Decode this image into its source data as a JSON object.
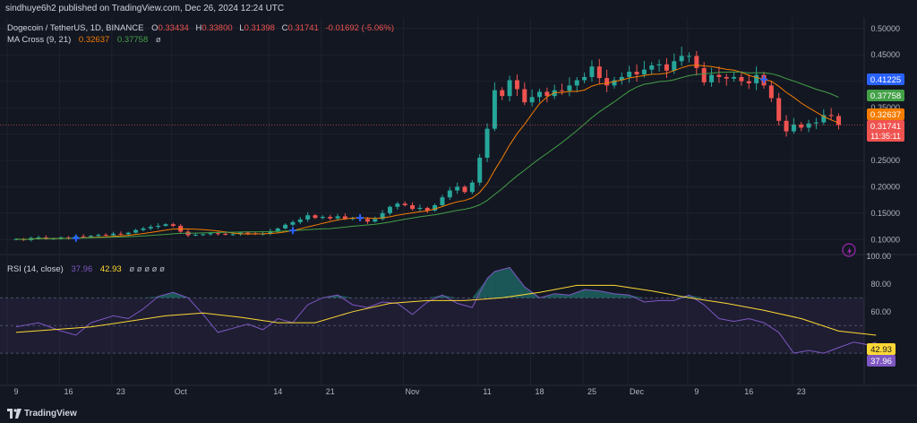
{
  "header": {
    "published": "sindhuye6h2 published on TradingView.com, Dec 26, 2024 12:24 UTC"
  },
  "legend": {
    "symbol": "Dogecoin / TetherUS, 1D, BINANCE",
    "o_label": "O",
    "o_value": "0.33434",
    "h_label": "H",
    "h_value": "0.33800",
    "l_label": "L",
    "l_value": "0.31398",
    "c_label": "C",
    "c_value": "0.31741",
    "change": "-0.01692 (-5.06%)",
    "ma_title": "MA Cross (9, 21)",
    "ma_fast_value": "0.32637",
    "ma_slow_value": "0.37758",
    "ma_extra": "ø",
    "rsi_title": "RSI (14, close)",
    "rsi_value": "37.96",
    "rsi_ma_value": "42.93",
    "rsi_extra": "ø ø ø ø ø"
  },
  "price_badges": {
    "top": "0.41225",
    "ma_slow": "0.37758",
    "ma_fast": "0.32637",
    "last": "0.31741",
    "countdown": "11:35:11"
  },
  "rsi_badges": {
    "rsi_ma": "42.93",
    "rsi": "37.96"
  },
  "footer": {
    "brand": "TradingView"
  },
  "colors": {
    "bg": "#131722",
    "up": "#26a69a",
    "down": "#ef5350",
    "ma_fast": "#f57c00",
    "ma_slow": "#43a047",
    "rsi": "#7e57c2",
    "rsi_ma": "#fdd835",
    "grid": "#1e222d",
    "cross_up": "#2962ff",
    "cross_down": "#2962ff"
  },
  "chart_data": [
    {
      "type": "candlestick",
      "title": "Dogecoin / TetherUS, 1D, BINANCE",
      "ylim": [
        0.075,
        0.52
      ],
      "yticks": [
        0.1,
        0.15,
        0.2,
        0.25,
        0.3,
        0.35,
        0.4,
        0.45,
        0.5
      ],
      "ytick_labels": [
        "0.10000",
        "0.15000",
        "0.20000",
        "0.25000",
        "0.30000",
        "0.35000",
        "0.40000",
        "0.45000",
        "0.50000"
      ],
      "xticks": [
        {
          "label": "9",
          "day": 0
        },
        {
          "label": "16",
          "day": 7
        },
        {
          "label": "23",
          "day": 14
        },
        {
          "label": "Oct",
          "day": 22
        },
        {
          "label": "14",
          "day": 35
        },
        {
          "label": "21",
          "day": 42
        },
        {
          "label": "Nov",
          "day": 53
        },
        {
          "label": "11",
          "day": 63
        },
        {
          "label": "18",
          "day": 70
        },
        {
          "label": "25",
          "day": 77
        },
        {
          "label": "Dec",
          "day": 83
        },
        {
          "label": "9",
          "day": 91
        },
        {
          "label": "16",
          "day": 98
        },
        {
          "label": "23",
          "day": 105
        }
      ],
      "first_day": "2024-09-08",
      "closes": [
        0.101,
        0.099,
        0.103,
        0.104,
        0.101,
        0.102,
        0.104,
        0.103,
        0.106,
        0.105,
        0.107,
        0.109,
        0.108,
        0.111,
        0.11,
        0.113,
        0.118,
        0.121,
        0.124,
        0.126,
        0.129,
        0.126,
        0.115,
        0.108,
        0.109,
        0.11,
        0.112,
        0.111,
        0.109,
        0.11,
        0.113,
        0.112,
        0.11,
        0.111,
        0.116,
        0.121,
        0.128,
        0.133,
        0.138,
        0.146,
        0.141,
        0.143,
        0.14,
        0.144,
        0.139,
        0.141,
        0.139,
        0.134,
        0.139,
        0.15,
        0.162,
        0.168,
        0.165,
        0.158,
        0.16,
        0.155,
        0.165,
        0.18,
        0.193,
        0.2,
        0.19,
        0.208,
        0.255,
        0.31,
        0.383,
        0.372,
        0.402,
        0.385,
        0.36,
        0.37,
        0.38,
        0.372,
        0.383,
        0.382,
        0.392,
        0.402,
        0.408,
        0.428,
        0.406,
        0.392,
        0.402,
        0.408,
        0.418,
        0.413,
        0.422,
        0.43,
        0.432,
        0.42,
        0.438,
        0.448,
        0.448,
        0.425,
        0.398,
        0.412,
        0.408,
        0.405,
        0.408,
        0.4,
        0.396,
        0.412,
        0.392,
        0.368,
        0.325,
        0.305,
        0.318,
        0.312,
        0.32,
        0.322,
        0.336,
        0.334,
        0.317
      ],
      "ma_fast": {
        "name": "MA 9",
        "last": 0.32637
      },
      "ma_slow": {
        "name": "MA 21",
        "last": 0.37758
      },
      "cross_markers_days": [
        8,
        37,
        46,
        100
      ]
    },
    {
      "type": "line",
      "title": "RSI (14, close)",
      "ylim": [
        10,
        100
      ],
      "yticks": [
        60,
        80,
        100
      ],
      "ytick_labels": [
        "60.00",
        "80.00",
        "100.00"
      ],
      "band": [
        30,
        70
      ],
      "midline": 50,
      "series": [
        {
          "name": "RSI",
          "last": 37.96,
          "points": [
            [
              0,
              49
            ],
            [
              3,
              52
            ],
            [
              6,
              46
            ],
            [
              8,
              43
            ],
            [
              10,
              52
            ],
            [
              13,
              57
            ],
            [
              15,
              55
            ],
            [
              17,
              62
            ],
            [
              19,
              71
            ],
            [
              21,
              74
            ],
            [
              23,
              70
            ],
            [
              25,
              58
            ],
            [
              27,
              45
            ],
            [
              29,
              48
            ],
            [
              31,
              51
            ],
            [
              33,
              47
            ],
            [
              35,
              55
            ],
            [
              37,
              52
            ],
            [
              39,
              65
            ],
            [
              41,
              70
            ],
            [
              43,
              72
            ],
            [
              45,
              65
            ],
            [
              47,
              63
            ],
            [
              49,
              67
            ],
            [
              51,
              66
            ],
            [
              53,
              58
            ],
            [
              55,
              67
            ],
            [
              57,
              72
            ],
            [
              59,
              66
            ],
            [
              61,
              63
            ],
            [
              63,
              84
            ],
            [
              64,
              89
            ],
            [
              66,
              92
            ],
            [
              68,
              78
            ],
            [
              70,
              70
            ],
            [
              72,
              73
            ],
            [
              74,
              72
            ],
            [
              76,
              76
            ],
            [
              78,
              75
            ],
            [
              80,
              73
            ],
            [
              82,
              72
            ],
            [
              84,
              67
            ],
            [
              86,
              68
            ],
            [
              88,
              68
            ],
            [
              90,
              72
            ],
            [
              92,
              65
            ],
            [
              94,
              55
            ],
            [
              96,
              53
            ],
            [
              98,
              55
            ],
            [
              100,
              52
            ],
            [
              102,
              45
            ],
            [
              104,
              30
            ],
            [
              106,
              32
            ],
            [
              108,
              30
            ],
            [
              110,
              34
            ],
            [
              112,
              38
            ],
            [
              114,
              36
            ],
            [
              115,
              38
            ]
          ]
        },
        {
          "name": "RSI-based MA",
          "last": 42.93,
          "points": [
            [
              0,
              45
            ],
            [
              10,
              49
            ],
            [
              20,
              57
            ],
            [
              25,
              59
            ],
            [
              30,
              56
            ],
            [
              35,
              52
            ],
            [
              40,
              52
            ],
            [
              45,
              60
            ],
            [
              50,
              66
            ],
            [
              55,
              68
            ],
            [
              60,
              68
            ],
            [
              65,
              70
            ],
            [
              70,
              74
            ],
            [
              75,
              79
            ],
            [
              80,
              79
            ],
            [
              85,
              75
            ],
            [
              90,
              70
            ],
            [
              95,
              66
            ],
            [
              100,
              61
            ],
            [
              105,
              55
            ],
            [
              110,
              46
            ],
            [
              115,
              43
            ]
          ]
        }
      ],
      "xticks": [
        {
          "label": "9",
          "day": 0
        },
        {
          "label": "16",
          "day": 7
        },
        {
          "label": "23",
          "day": 14
        },
        {
          "label": "Oct",
          "day": 22
        },
        {
          "label": "14",
          "day": 35
        },
        {
          "label": "21",
          "day": 42
        },
        {
          "label": "Nov",
          "day": 53
        },
        {
          "label": "11",
          "day": 63
        },
        {
          "label": "18",
          "day": 70
        },
        {
          "label": "25",
          "day": 77
        },
        {
          "label": "Dec",
          "day": 83
        },
        {
          "label": "9",
          "day": 91
        },
        {
          "label": "16",
          "day": 98
        },
        {
          "label": "23",
          "day": 105
        }
      ]
    }
  ]
}
